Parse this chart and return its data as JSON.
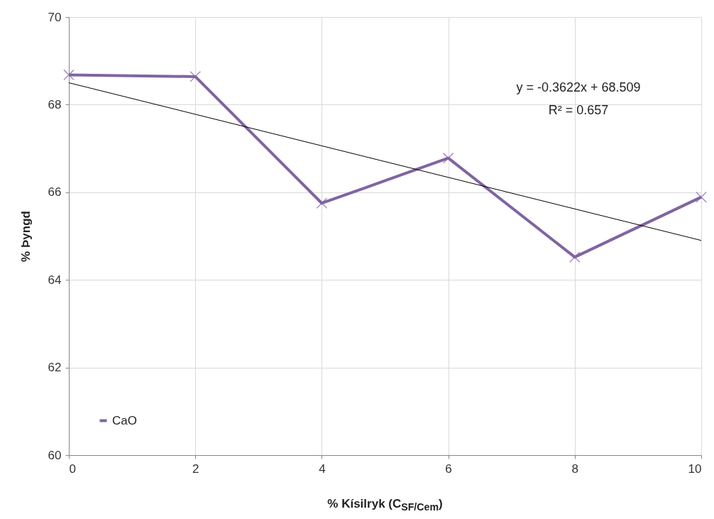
{
  "chart_data": {
    "type": "line",
    "xlabel": "% Kísilryk (C$_{SF/Cem}$)",
    "ylabel": "% Þyngd",
    "x": [
      0,
      2,
      4,
      6,
      8,
      10
    ],
    "series": [
      {
        "name": "CaO",
        "color": "#8064a2",
        "values": [
          68.68,
          68.64,
          65.75,
          66.78,
          64.52,
          65.89
        ],
        "marker": "cross"
      },
      {
        "type": "line",
        "color": "#000000",
        "x": [
          0,
          10
        ],
        "values": [
          68.5,
          64.9
        ],
        "marker": "none"
      }
    ],
    "annotations": [
      "y = -0.3622x + 68.509",
      "R² = 0.657"
    ],
    "xlim": [
      0,
      10
    ],
    "xticks": [
      0,
      2,
      4,
      6,
      8,
      10
    ],
    "ylim": [
      60,
      70
    ],
    "yticks": [
      60,
      62,
      64,
      66,
      68,
      70
    ],
    "grid": true,
    "legend": "bottom left"
  }
}
